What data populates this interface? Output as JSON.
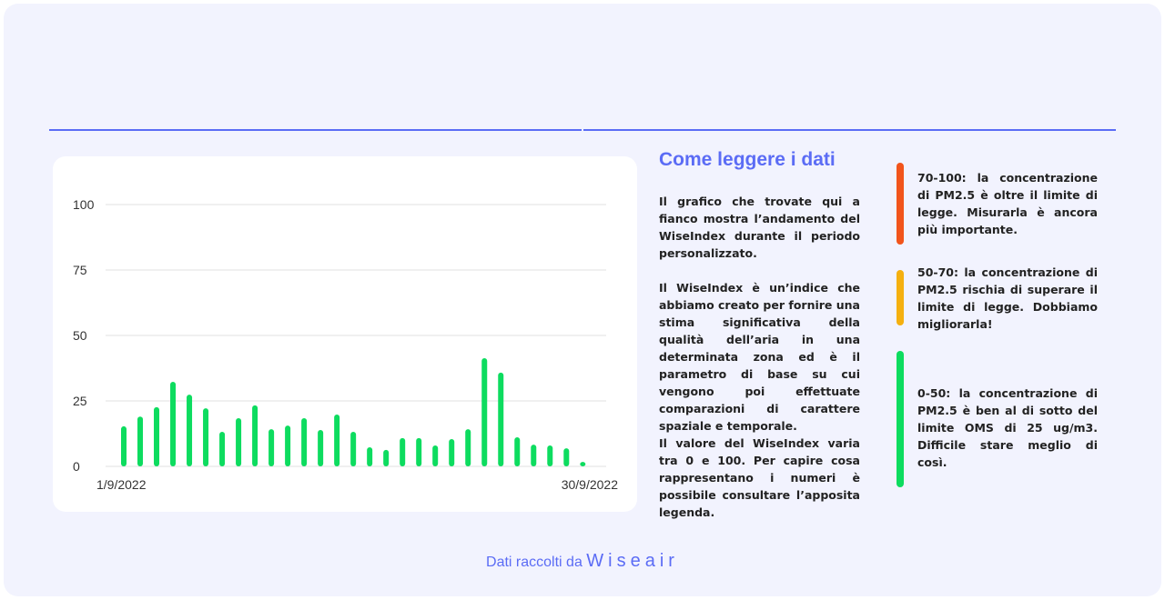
{
  "chart_data": {
    "type": "bar",
    "x": [
      "1/9/2022",
      "2/9/2022",
      "3/9/2022",
      "4/9/2022",
      "5/9/2022",
      "6/9/2022",
      "7/9/2022",
      "8/9/2022",
      "9/9/2022",
      "10/9/2022",
      "11/9/2022",
      "12/9/2022",
      "13/9/2022",
      "14/9/2022",
      "15/9/2022",
      "16/9/2022",
      "17/9/2022",
      "18/9/2022",
      "19/9/2022",
      "20/9/2022",
      "21/9/2022",
      "22/9/2022",
      "23/9/2022",
      "24/9/2022",
      "25/9/2022",
      "26/9/2022",
      "27/9/2022",
      "28/9/2022",
      "29/9/2022",
      "30/9/2022"
    ],
    "values": [
      15.3,
      19,
      22.6,
      32.3,
      27.4,
      22.2,
      13.2,
      18.4,
      23.3,
      14.2,
      15.6,
      18.4,
      13.9,
      19.8,
      13.2,
      7.3,
      6.3,
      10.8,
      10.8,
      8,
      10.4,
      14.2,
      41.3,
      35.8,
      11.1,
      8.3,
      8,
      6.9,
      1.7,
      null
    ],
    "ylim": [
      0,
      100
    ],
    "yticks": [
      "0",
      "25",
      "50",
      "75",
      "100"
    ],
    "xtick_labels": [
      "1/9/2022",
      "30/9/2022"
    ],
    "grid": true,
    "bar_color": "#0ddc5f"
  },
  "info": {
    "title": "Come leggere i dati",
    "paragraphs": [
      "Il grafico che trovate qui a fianco mostra l’andamento del WiseIndex durante il periodo personalizzato.",
      "Il WiseIndex è un’indice che abbiamo creato per fornire una stima significativa della qualità dell’aria in una determinata zona ed è il parametro di base su cui vengono poi effettuate comparazioni di carattere spaziale e temporale.",
      "Il valore del WiseIndex varia tra 0 e 100. Per capire cosa rappresentano i numeri è possibile consultare l’apposita legenda."
    ]
  },
  "legend": [
    {
      "text": "70-100: la concentrazione di PM2.5 è oltre il limite di legge. Misurarla è ancora più importante.",
      "color": "#f2541b"
    },
    {
      "text": "50-70: la concentrazione di PM2.5 rischia di superare il limite di legge. Dobbiamo migliorarla!",
      "color": "#f5b00f"
    },
    {
      "text": "0-50: la concentrazione di PM2.5 è ben al di sotto del limite OMS di 25 ug/m3. Difficile stare meglio di così.",
      "color": "#0ddc5f"
    }
  ],
  "footer": {
    "prefix": "Dati raccolti da",
    "brand": "Wiseair"
  },
  "colors": {
    "accent": "#5b6cf5",
    "background": "#f2f3fe"
  }
}
